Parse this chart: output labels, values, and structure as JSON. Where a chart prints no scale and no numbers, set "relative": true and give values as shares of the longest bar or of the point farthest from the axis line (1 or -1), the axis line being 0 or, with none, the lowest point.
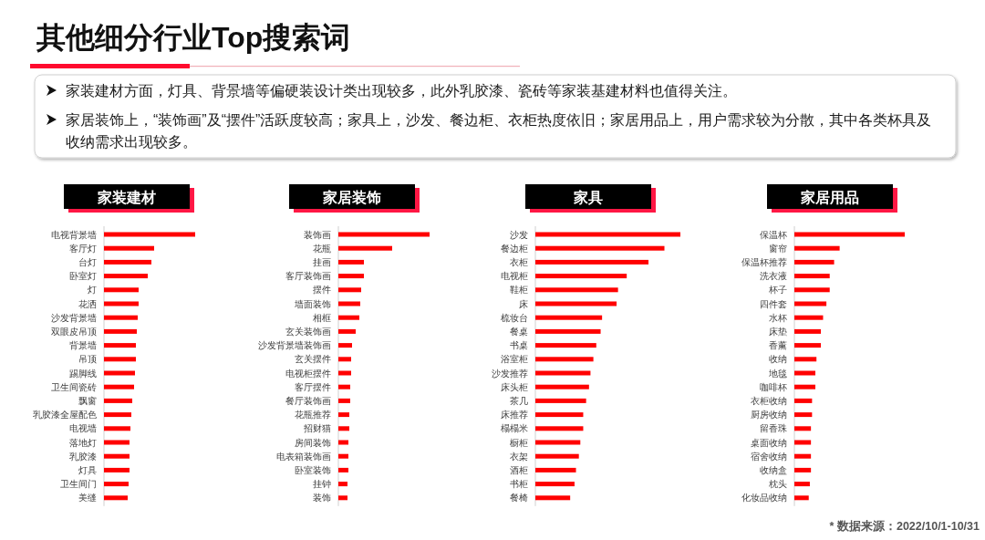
{
  "chart_data": [
    {
      "type": "other",
      "title": "其他细分行业Top搜索词",
      "annotations": [
        "家装建材方面，灯具、背景墙等偏硬装设计类出现较多，此外乳胶漆、瓷砖等家装基建材料也值得关注。",
        "家居装饰上，“装饰画”及“摆件”活跃度较高；家具上，沙发、餐边柜、衣柜热度依旧；家居用品上，用户需求较为分散，其中各类杯具及收纳需求出现较多。"
      ]
    },
    {
      "type": "bar",
      "orientation": "horizontal",
      "relative": true,
      "title": "家装建材",
      "color": "#ff0000",
      "categories": [
        "电视背景墙",
        "客厅灯",
        "台灯",
        "卧室灯",
        "灯",
        "花洒",
        "沙发背景墙",
        "双眼皮吊顶",
        "背景墙",
        "吊顶",
        "踢脚线",
        "卫生间瓷砖",
        "飘窗",
        "乳胶漆全屋配色",
        "电视墙",
        "落地灯",
        "乳胶漆",
        "灯具",
        "卫生间门",
        "美缝"
      ],
      "values": [
        1,
        0.55,
        0.52,
        0.48,
        0.38,
        0.38,
        0.37,
        0.36,
        0.35,
        0.35,
        0.34,
        0.33,
        0.31,
        0.3,
        0.29,
        0.28,
        0.28,
        0.28,
        0.27,
        0.26
      ]
    },
    {
      "type": "bar",
      "orientation": "horizontal",
      "relative": true,
      "title": "家居装饰",
      "color": "#ff0000",
      "categories": [
        "装饰画",
        "花瓶",
        "挂画",
        "客厅装饰画",
        "摆件",
        "墙面装饰",
        "相框",
        "玄关装饰画",
        "沙发背景墙装饰画",
        "玄关摆件",
        "电视柜摆件",
        "客厅摆件",
        "餐厅装饰画",
        "花瓶推荐",
        "招财猫",
        "房间装饰",
        "电表箱装饰画",
        "卧室装饰",
        "挂钟",
        "装饰"
      ],
      "values": [
        1,
        0.59,
        0.28,
        0.28,
        0.25,
        0.24,
        0.23,
        0.19,
        0.15,
        0.14,
        0.14,
        0.13,
        0.13,
        0.12,
        0.12,
        0.11,
        0.11,
        0.11,
        0.1,
        0.1
      ]
    },
    {
      "type": "bar",
      "orientation": "horizontal",
      "relative": true,
      "title": "家具",
      "color": "#ff0000",
      "categories": [
        "沙发",
        "餐边柜",
        "衣柜",
        "电视柜",
        "鞋柜",
        "床",
        "梳妆台",
        "餐桌",
        "书桌",
        "浴室柜",
        "沙发推荐",
        "床头柜",
        "茶几",
        "床推荐",
        "榻榻米",
        "橱柜",
        "衣架",
        "酒柜",
        "书柜",
        "餐椅"
      ],
      "values": [
        1,
        0.89,
        0.78,
        0.63,
        0.57,
        0.56,
        0.46,
        0.45,
        0.42,
        0.4,
        0.38,
        0.37,
        0.35,
        0.33,
        0.33,
        0.31,
        0.3,
        0.28,
        0.27,
        0.24
      ]
    },
    {
      "type": "bar",
      "orientation": "horizontal",
      "relative": true,
      "title": "家居用品",
      "color": "#ff0000",
      "categories": [
        "保温杯",
        "窗帘",
        "保温杯推荐",
        "洗衣液",
        "杯子",
        "四件套",
        "水杯",
        "床垫",
        "香薰",
        "收纳",
        "地毯",
        "咖啡杯",
        "衣柜收纳",
        "厨房收纳",
        "留香珠",
        "桌面收纳",
        "宿舍收纳",
        "收纳盒",
        "枕头",
        "化妆品收纳"
      ],
      "values": [
        1,
        0.41,
        0.36,
        0.32,
        0.32,
        0.29,
        0.26,
        0.24,
        0.24,
        0.2,
        0.19,
        0.19,
        0.16,
        0.16,
        0.15,
        0.15,
        0.15,
        0.15,
        0.14,
        0.13
      ],
      "annotations": [
        "* 数据来源：2022/10/1-10/31"
      ]
    }
  ]
}
